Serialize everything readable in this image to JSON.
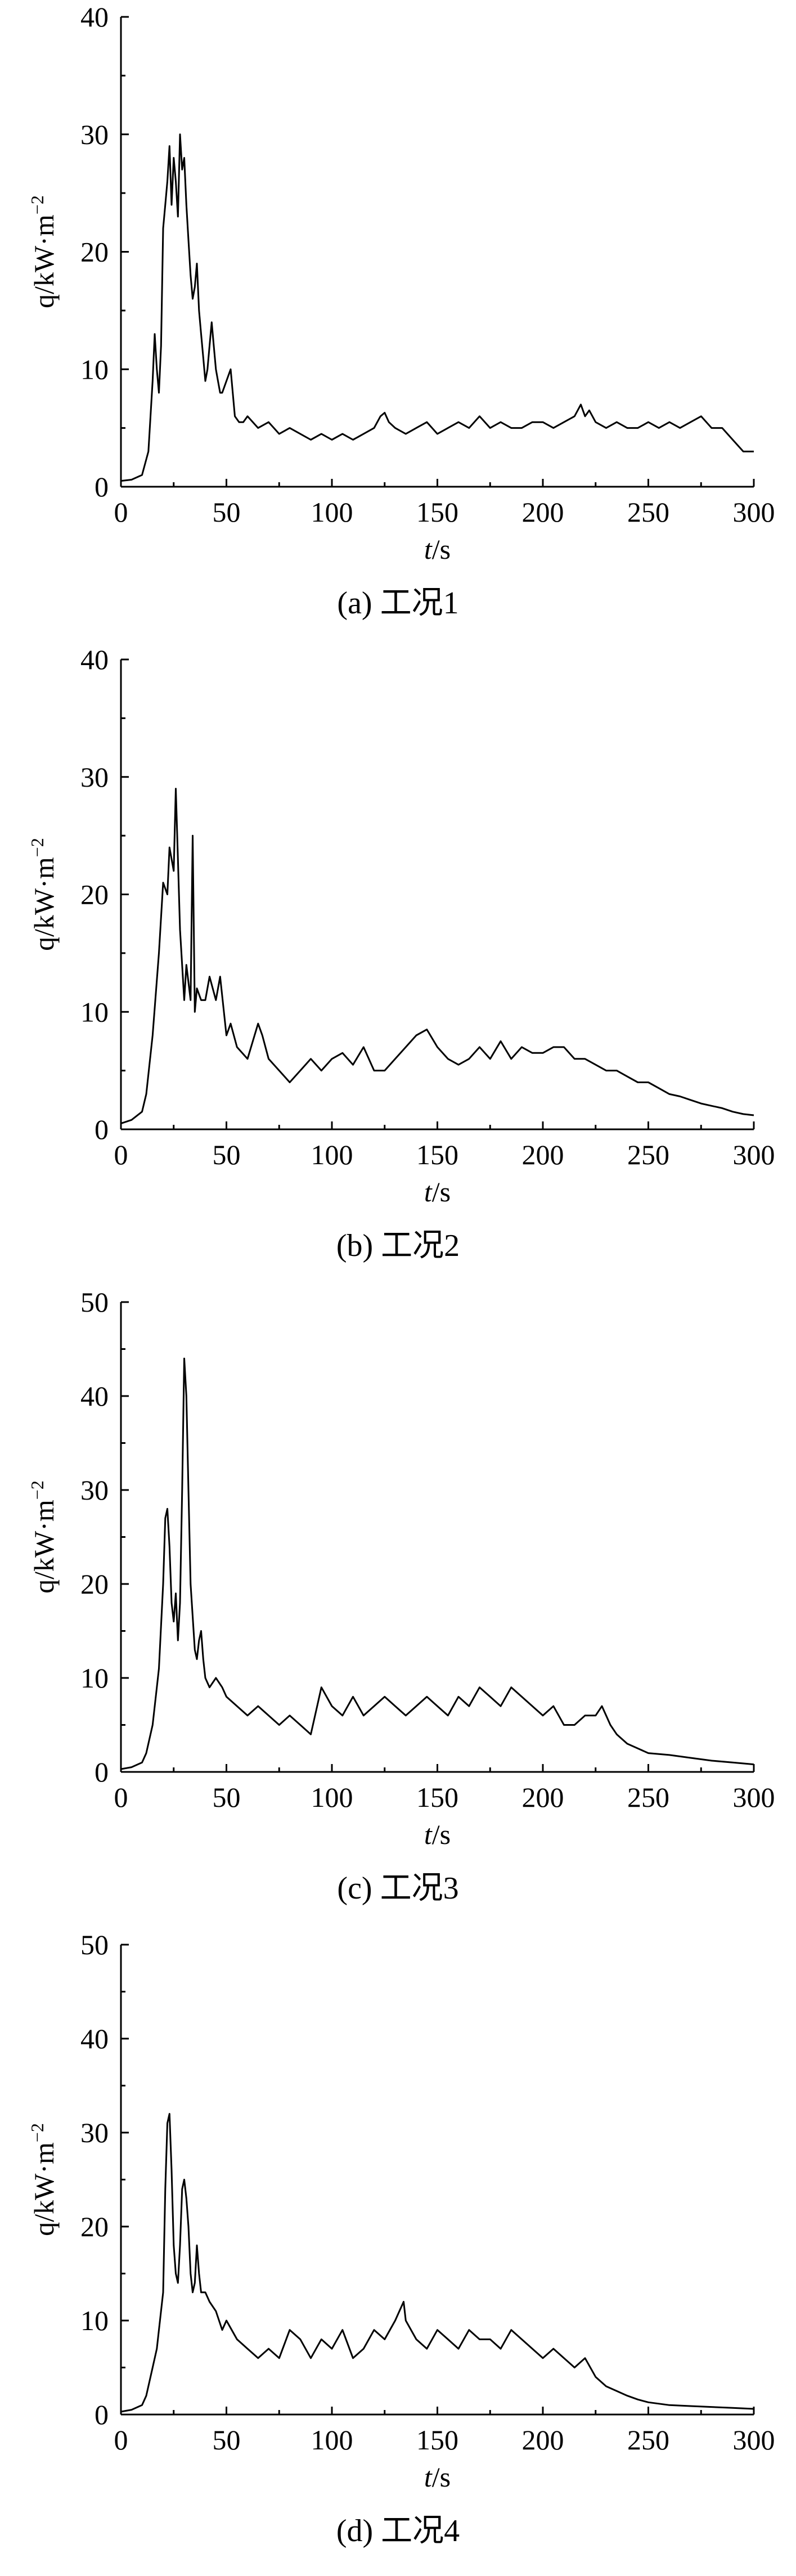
{
  "chart_data": [
    {
      "type": "line",
      "caption": "(a) 工况1",
      "xlabel_italic": "t",
      "xlabel_rest": "/s",
      "ylabel": "q/kW·m",
      "ylabel_sup": "−2",
      "xlim": [
        0,
        300
      ],
      "ylim": [
        0,
        40
      ],
      "xticks": [
        0,
        50,
        100,
        150,
        200,
        250,
        300
      ],
      "yticks": [
        0,
        10,
        20,
        30,
        40
      ],
      "grid": false,
      "series": [
        {
          "x": [
            0,
            5,
            10,
            13,
            15,
            16,
            17,
            18,
            19,
            20,
            21,
            22,
            23,
            24,
            25,
            26,
            27,
            28,
            29,
            30,
            31,
            32,
            33,
            34,
            35,
            36,
            37,
            38,
            39,
            40,
            41,
            42,
            43,
            44,
            45,
            46,
            47,
            48,
            50,
            52,
            54,
            56,
            58,
            60,
            65,
            70,
            75,
            80,
            85,
            90,
            95,
            100,
            105,
            110,
            115,
            120,
            123,
            125,
            127,
            130,
            135,
            140,
            145,
            150,
            155,
            160,
            165,
            170,
            175,
            180,
            185,
            190,
            195,
            200,
            205,
            210,
            215,
            218,
            220,
            222,
            225,
            230,
            235,
            240,
            245,
            250,
            255,
            260,
            265,
            270,
            275,
            280,
            285,
            290,
            295,
            300
          ],
          "y": [
            0.5,
            0.6,
            1,
            3,
            9,
            13,
            10,
            8,
            12,
            22,
            24,
            26,
            29,
            24,
            28,
            26,
            23,
            30,
            27,
            28,
            24,
            21,
            18,
            16,
            17,
            19,
            15,
            13,
            11,
            9,
            10,
            12,
            14,
            12,
            10,
            9,
            8,
            8,
            9,
            10,
            6,
            5.5,
            5.5,
            6,
            5,
            5.5,
            4.5,
            5,
            4.5,
            4,
            4.5,
            4,
            4.5,
            4,
            4.5,
            5,
            6,
            6.3,
            5.5,
            5,
            4.5,
            5,
            5.5,
            4.5,
            5,
            5.5,
            5,
            6,
            5,
            5.5,
            5,
            5,
            5.5,
            5.5,
            5,
            5.5,
            6,
            7,
            6,
            6.5,
            5.5,
            5,
            5.5,
            5,
            5,
            5.5,
            5,
            5.5,
            5,
            5.5,
            6,
            5,
            5,
            4,
            3,
            3
          ]
        }
      ]
    },
    {
      "type": "line",
      "caption": "(b) 工况2",
      "xlabel_italic": "t",
      "xlabel_rest": "/s",
      "ylabel": "q/kW·m",
      "ylabel_sup": "−2",
      "xlim": [
        0,
        300
      ],
      "ylim": [
        0,
        40
      ],
      "xticks": [
        0,
        50,
        100,
        150,
        200,
        250,
        300
      ],
      "yticks": [
        0,
        10,
        20,
        30,
        40
      ],
      "grid": false,
      "series": [
        {
          "x": [
            0,
            5,
            10,
            12,
            15,
            18,
            20,
            22,
            23,
            25,
            26,
            27,
            28,
            30,
            31,
            33,
            34,
            35,
            36,
            38,
            40,
            42,
            45,
            47,
            50,
            52,
            55,
            60,
            65,
            67,
            70,
            75,
            80,
            85,
            90,
            95,
            100,
            105,
            110,
            115,
            120,
            125,
            130,
            135,
            140,
            145,
            150,
            155,
            160,
            165,
            170,
            175,
            180,
            185,
            190,
            195,
            200,
            205,
            210,
            215,
            220,
            225,
            230,
            235,
            240,
            245,
            250,
            255,
            260,
            265,
            270,
            275,
            280,
            285,
            290,
            295,
            300
          ],
          "y": [
            0.5,
            0.8,
            1.5,
            3,
            8,
            15,
            21,
            20,
            24,
            22,
            29,
            23,
            17,
            11,
            14,
            11,
            25,
            10,
            12,
            11,
            11,
            13,
            11,
            13,
            8,
            9,
            7,
            6,
            9,
            8,
            6,
            5,
            4,
            5,
            6,
            5,
            6,
            6.5,
            5.5,
            7,
            5,
            5,
            6,
            7,
            8,
            8.5,
            7,
            6,
            5.5,
            6,
            7,
            6,
            7.5,
            6,
            7,
            6.5,
            6.5,
            7,
            7,
            6,
            6,
            5.5,
            5,
            5,
            4.5,
            4,
            4,
            3.5,
            3,
            2.8,
            2.5,
            2.2,
            2,
            1.8,
            1.5,
            1.3,
            1.2
          ]
        }
      ]
    },
    {
      "type": "line",
      "caption": "(c) 工况3",
      "xlabel_italic": "t",
      "xlabel_rest": "/s",
      "ylabel": "q/kW·m",
      "ylabel_sup": "−2",
      "xlim": [
        0,
        300
      ],
      "ylim": [
        0,
        50
      ],
      "xticks": [
        0,
        50,
        100,
        150,
        200,
        250,
        300
      ],
      "yticks": [
        0,
        10,
        20,
        30,
        40,
        50
      ],
      "grid": false,
      "series": [
        {
          "x": [
            0,
            5,
            10,
            12,
            15,
            17,
            18,
            20,
            21,
            22,
            23,
            24,
            25,
            26,
            27,
            28,
            29,
            30,
            31,
            32,
            33,
            35,
            36,
            37,
            38,
            39,
            40,
            42,
            45,
            48,
            50,
            55,
            60,
            65,
            70,
            75,
            80,
            85,
            90,
            93,
            95,
            100,
            105,
            110,
            115,
            120,
            125,
            130,
            135,
            140,
            145,
            150,
            155,
            160,
            165,
            170,
            175,
            180,
            185,
            190,
            195,
            200,
            205,
            210,
            215,
            220,
            225,
            228,
            230,
            232,
            235,
            240,
            245,
            250,
            260,
            270,
            280,
            290,
            300
          ],
          "y": [
            0.3,
            0.5,
            1,
            2,
            5,
            9,
            11,
            20,
            27,
            28,
            24,
            18,
            16,
            19,
            14,
            18,
            30,
            44,
            40,
            30,
            20,
            13,
            12,
            14,
            15,
            12,
            10,
            9,
            10,
            9,
            8,
            7,
            6,
            7,
            6,
            5,
            6,
            5,
            4,
            7,
            9,
            7,
            6,
            8,
            6,
            7,
            8,
            7,
            6,
            7,
            8,
            7,
            6,
            8,
            7,
            9,
            8,
            7,
            9,
            8,
            7,
            6,
            7,
            5,
            5,
            6,
            6,
            7,
            6,
            5,
            4,
            3,
            2.5,
            2,
            1.8,
            1.5,
            1.2,
            1,
            0.8
          ]
        }
      ]
    },
    {
      "type": "line",
      "caption": "(d) 工况4",
      "xlabel_italic": "t",
      "xlabel_rest": "/s",
      "ylabel": "q/kW·m",
      "ylabel_sup": "−2",
      "xlim": [
        0,
        300
      ],
      "ylim": [
        0,
        50
      ],
      "xticks": [
        0,
        50,
        100,
        150,
        200,
        250,
        300
      ],
      "yticks": [
        0,
        10,
        20,
        30,
        40,
        50
      ],
      "grid": false,
      "series": [
        {
          "x": [
            0,
            5,
            10,
            12,
            15,
            17,
            18,
            20,
            21,
            22,
            23,
            24,
            25,
            26,
            27,
            28,
            29,
            30,
            31,
            32,
            33,
            34,
            35,
            36,
            37,
            38,
            40,
            42,
            45,
            48,
            50,
            55,
            60,
            65,
            70,
            75,
            80,
            85,
            90,
            95,
            100,
            105,
            110,
            115,
            120,
            125,
            130,
            132,
            134,
            135,
            140,
            145,
            150,
            155,
            160,
            165,
            170,
            175,
            180,
            185,
            190,
            195,
            200,
            205,
            210,
            215,
            220,
            225,
            230,
            235,
            240,
            245,
            250,
            260,
            270,
            280,
            290,
            300
          ],
          "y": [
            0.3,
            0.5,
            1,
            2,
            5,
            7,
            9,
            13,
            24,
            31,
            32,
            26,
            18,
            15,
            14,
            18,
            24,
            25,
            23,
            20,
            15,
            13,
            14,
            18,
            15,
            13,
            13,
            12,
            11,
            9,
            10,
            8,
            7,
            6,
            7,
            6,
            9,
            8,
            6,
            8,
            7,
            9,
            6,
            7,
            9,
            8,
            10,
            11,
            12,
            10,
            8,
            7,
            9,
            8,
            7,
            9,
            8,
            8,
            7,
            9,
            8,
            7,
            6,
            7,
            6,
            5,
            6,
            4,
            3,
            2.5,
            2,
            1.6,
            1.3,
            1,
            0.9,
            0.8,
            0.7,
            0.6
          ]
        }
      ]
    }
  ]
}
